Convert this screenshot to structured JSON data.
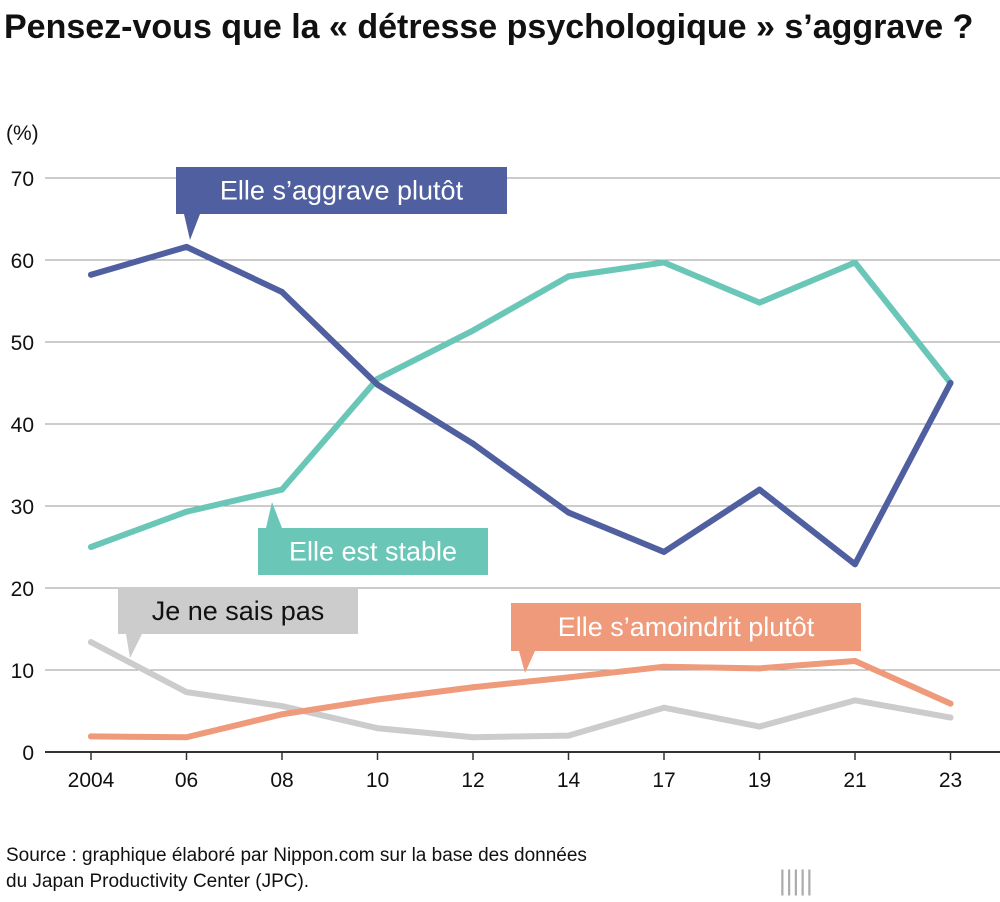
{
  "title": "Pensez-vous que la « détresse psychologique » s’aggrave ?",
  "source": "Source : graphique élaboré par Nippon.com sur la base des données",
  "source2": "du Japan Productivity Center (JPC).",
  "logo": {
    "main": "nippon",
    "dot": ".",
    "suffix": "com"
  },
  "chart_data": {
    "type": "line",
    "ylabel": "(%)",
    "ylim": [
      0,
      70
    ],
    "yticks": [
      0,
      10,
      20,
      30,
      40,
      50,
      60,
      70
    ],
    "categories": [
      "2004",
      "06",
      "08",
      "10",
      "12",
      "14",
      "17",
      "19",
      "21",
      "23"
    ],
    "grid": true,
    "series": [
      {
        "name": "Elle s’aggrave plutôt",
        "color": "#4f5fa0",
        "values": [
          58.2,
          61.6,
          56.1,
          44.8,
          37.6,
          29.2,
          24.4,
          32.0,
          22.9,
          45.0
        ]
      },
      {
        "name": "Elle est stable",
        "color": "#6ac7b8",
        "values": [
          25.0,
          29.3,
          32.0,
          45.5,
          51.4,
          58.0,
          59.7,
          54.8,
          59.7,
          45.0
        ]
      },
      {
        "name": "Je ne sais pas",
        "color": "#cccccc",
        "values": [
          13.4,
          7.3,
          5.6,
          2.9,
          1.8,
          2.0,
          5.4,
          3.1,
          6.3,
          4.2
        ]
      },
      {
        "name": "Elle s’amoindrit plutôt",
        "color": "#ef9a7a",
        "values": [
          1.9,
          1.8,
          4.6,
          6.4,
          7.9,
          9.1,
          10.4,
          10.2,
          11.1,
          5.9
        ]
      }
    ]
  }
}
